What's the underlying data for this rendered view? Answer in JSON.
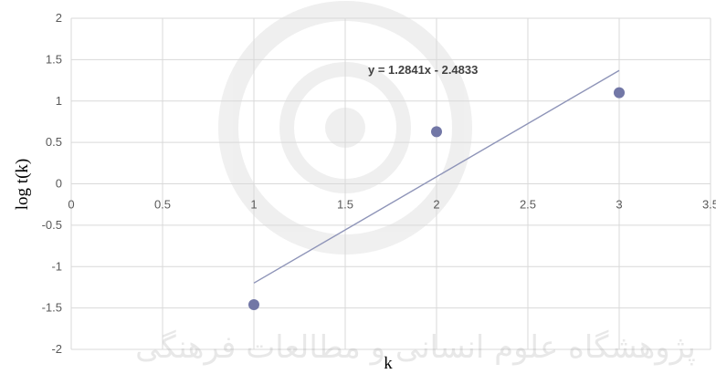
{
  "chart_data": {
    "type": "scatter",
    "title": "",
    "xlabel": "k",
    "ylabel": "log t(k)",
    "xlim": [
      0,
      3.5
    ],
    "ylim": [
      -2,
      2
    ],
    "x_ticks": [
      0,
      0.5,
      1,
      1.5,
      2,
      2.5,
      3,
      3.5
    ],
    "x_tick_labels": [
      "0",
      "0.5",
      "1",
      "1.5",
      "2",
      "2.5",
      "3",
      "3.5"
    ],
    "y_ticks": [
      -2,
      -1.5,
      -1,
      -0.5,
      0,
      0.5,
      1,
      1.5,
      2
    ],
    "y_tick_labels": [
      "-2",
      "-1.5",
      "-1",
      "-0.5",
      "0",
      "0.5",
      "1",
      "1.5",
      "2"
    ],
    "grid": true,
    "legend": "none",
    "series": [
      {
        "x": [
          1,
          2,
          3
        ],
        "y": [
          -1.46,
          0.63,
          1.1
        ],
        "color": "#7277a6"
      }
    ],
    "trendline": {
      "type": "linear",
      "slope": 1.2841,
      "intercept": -2.4833,
      "x_range": [
        1,
        3
      ],
      "color": "#8e94b8",
      "equation": "y = 1.2841x - 2.4833"
    },
    "watermark_text": "پژوهشگاه علوم انسانی و مطالعات فرهنگی",
    "colors": {
      "gridline": "#d9d9d9",
      "background": "#ffffff"
    }
  }
}
